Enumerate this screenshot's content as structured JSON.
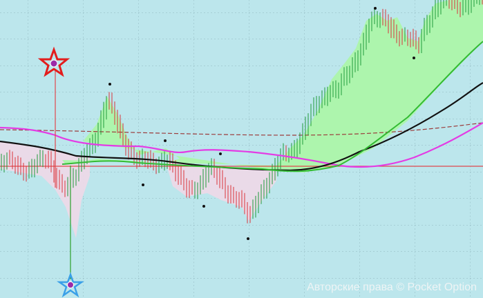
{
  "watermark": {
    "text": "Авторские права © Pocket Option"
  }
}
